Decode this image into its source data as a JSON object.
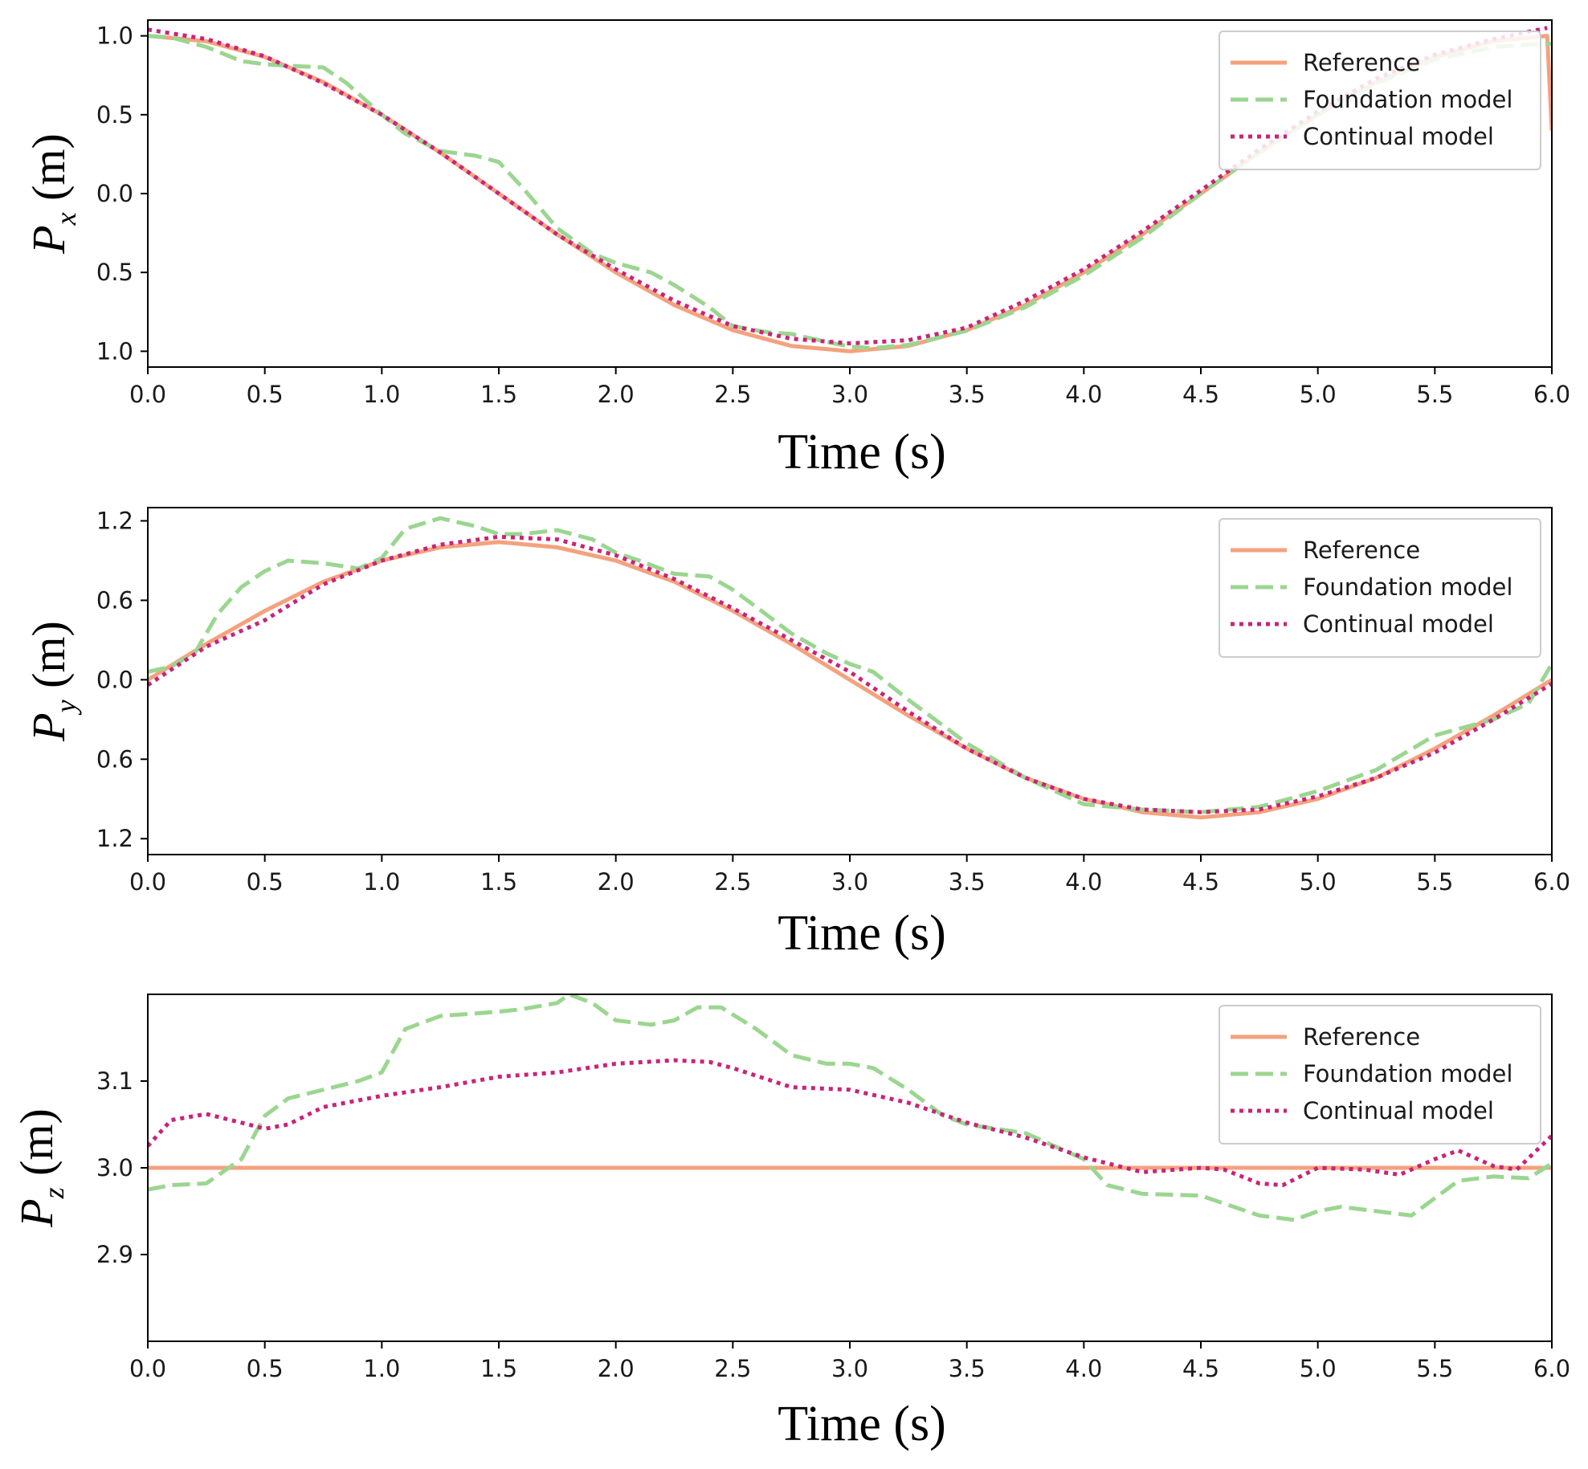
{
  "colors": {
    "reference": "#F4A27E",
    "foundation": "#9BD690",
    "continual": "#C8247A",
    "axis": "#000000",
    "legend_border": "#CCCCCC"
  },
  "chart_data": [
    {
      "type": "line",
      "xlabel": "Time (s)",
      "ylabel": {
        "symbol": "P",
        "sub": "x",
        "unit": " (m)"
      },
      "xlim": [
        0,
        6
      ],
      "ylim": [
        -1.1,
        1.1
      ],
      "xticks": [
        0,
        0.5,
        1,
        1.5,
        2,
        2.5,
        3,
        3.5,
        4,
        4.5,
        5,
        5.5,
        6
      ],
      "xtick_labels": [
        "0.0",
        "0.5",
        "1.0",
        "1.5",
        "2.0",
        "2.5",
        "3.0",
        "3.5",
        "4.0",
        "4.5",
        "5.0",
        "5.5",
        "6.0"
      ],
      "yticks": [
        1.0,
        0.5,
        0.0,
        -0.5,
        -1.0
      ],
      "ytick_labels": [
        "1.0",
        "0.5",
        "0.0",
        "0.5",
        "1.0"
      ],
      "legend": {
        "position": "top-right",
        "entries": [
          "Reference",
          "Foundation model",
          "Continual model"
        ]
      },
      "series": [
        {
          "name": "Reference",
          "style": "solid",
          "x": [
            0,
            0.25,
            0.5,
            0.75,
            1,
            1.25,
            1.5,
            1.75,
            2,
            2.25,
            2.5,
            2.75,
            3,
            3.25,
            3.5,
            3.75,
            4,
            4.25,
            4.5,
            4.75,
            5,
            5.25,
            5.5,
            5.75,
            5.98,
            6.0
          ],
          "y": [
            1.0,
            0.966,
            0.866,
            0.707,
            0.5,
            0.259,
            0.0,
            -0.259,
            -0.5,
            -0.707,
            -0.866,
            -0.966,
            -1.0,
            -0.966,
            -0.866,
            -0.707,
            -0.5,
            -0.259,
            0.0,
            0.259,
            0.5,
            0.707,
            0.866,
            0.966,
            1.0,
            0.4
          ]
        },
        {
          "name": "Foundation model",
          "style": "dashed",
          "x": [
            0,
            0.1,
            0.25,
            0.4,
            0.5,
            0.6,
            0.75,
            0.85,
            1,
            1.1,
            1.25,
            1.4,
            1.5,
            1.6,
            1.75,
            1.9,
            2,
            2.15,
            2.25,
            2.4,
            2.5,
            2.65,
            2.75,
            2.9,
            3,
            3.1,
            3.25,
            3.5,
            3.75,
            4,
            4.25,
            4.5,
            4.75,
            5,
            5.25,
            5.5,
            5.75,
            5.95,
            6.0
          ],
          "y": [
            1.0,
            0.99,
            0.93,
            0.84,
            0.82,
            0.81,
            0.8,
            0.7,
            0.5,
            0.38,
            0.27,
            0.24,
            0.2,
            0.04,
            -0.22,
            -0.38,
            -0.44,
            -0.5,
            -0.58,
            -0.72,
            -0.84,
            -0.88,
            -0.89,
            -0.94,
            -0.97,
            -0.98,
            -0.96,
            -0.87,
            -0.72,
            -0.52,
            -0.28,
            0.0,
            0.26,
            0.5,
            0.7,
            0.85,
            0.93,
            0.95,
            0.95
          ]
        },
        {
          "name": "Continual model",
          "style": "dotted",
          "x": [
            0,
            0.25,
            0.5,
            0.75,
            1,
            1.25,
            1.5,
            1.75,
            2,
            2.25,
            2.5,
            2.75,
            3,
            3.25,
            3.5,
            3.75,
            4,
            4.25,
            4.5,
            4.75,
            5,
            5.25,
            5.5,
            5.75,
            5.98
          ],
          "y": [
            1.04,
            0.98,
            0.87,
            0.7,
            0.5,
            0.26,
            0.0,
            -0.26,
            -0.48,
            -0.68,
            -0.84,
            -0.92,
            -0.95,
            -0.93,
            -0.85,
            -0.68,
            -0.48,
            -0.24,
            0.02,
            0.28,
            0.52,
            0.73,
            0.88,
            0.98,
            1.05
          ]
        }
      ]
    },
    {
      "type": "line",
      "xlabel": "Time (s)",
      "ylabel": {
        "symbol": "P",
        "sub": "y",
        "unit": " (m)"
      },
      "xlim": [
        0,
        6
      ],
      "ylim": [
        -1.32,
        1.3
      ],
      "xticks": [
        0,
        0.5,
        1,
        1.5,
        2,
        2.5,
        3,
        3.5,
        4,
        4.5,
        5,
        5.5,
        6
      ],
      "xtick_labels": [
        "0.0",
        "0.5",
        "1.0",
        "1.5",
        "2.0",
        "2.5",
        "3.0",
        "3.5",
        "4.0",
        "4.5",
        "5.0",
        "5.5",
        "6.0"
      ],
      "yticks": [
        1.2,
        0.6,
        0.0,
        -0.6,
        -1.2
      ],
      "ytick_labels": [
        "1.2",
        "0.6",
        "0.0",
        "0.6",
        "1.2"
      ],
      "legend": {
        "position": "top-right",
        "entries": [
          "Reference",
          "Foundation model",
          "Continual model"
        ]
      },
      "series": [
        {
          "name": "Reference",
          "style": "solid",
          "x": [
            0,
            0.25,
            0.5,
            0.75,
            1,
            1.25,
            1.5,
            1.75,
            2,
            2.25,
            2.5,
            2.75,
            3,
            3.25,
            3.5,
            3.75,
            4,
            4.25,
            4.5,
            4.75,
            5,
            5.25,
            5.5,
            5.75,
            6
          ],
          "y": [
            0,
            0.27,
            0.52,
            0.74,
            0.9,
            1.0,
            1.04,
            1.0,
            0.9,
            0.74,
            0.52,
            0.27,
            0,
            -0.27,
            -0.52,
            -0.74,
            -0.9,
            -1.0,
            -1.04,
            -1.0,
            -0.9,
            -0.74,
            -0.52,
            -0.27,
            0
          ]
        },
        {
          "name": "Foundation model",
          "style": "dashed",
          "x": [
            0,
            0.1,
            0.2,
            0.3,
            0.4,
            0.5,
            0.6,
            0.75,
            0.9,
            1,
            1.1,
            1.25,
            1.4,
            1.5,
            1.6,
            1.75,
            1.9,
            2,
            2.1,
            2.25,
            2.4,
            2.5,
            2.6,
            2.75,
            2.9,
            3,
            3.1,
            3.25,
            3.5,
            3.75,
            4,
            4.25,
            4.5,
            4.75,
            5,
            5.25,
            5.5,
            5.75,
            5.9,
            6.0
          ],
          "y": [
            0.06,
            0.1,
            0.2,
            0.5,
            0.7,
            0.82,
            0.9,
            0.88,
            0.84,
            0.92,
            1.14,
            1.22,
            1.16,
            1.1,
            1.1,
            1.13,
            1.06,
            0.96,
            0.9,
            0.8,
            0.78,
            0.68,
            0.55,
            0.35,
            0.2,
            0.12,
            0.06,
            -0.15,
            -0.48,
            -0.74,
            -0.94,
            -0.98,
            -1.0,
            -0.96,
            -0.84,
            -0.68,
            -0.42,
            -0.3,
            -0.18,
            0.12
          ]
        },
        {
          "name": "Continual model",
          "style": "dotted",
          "x": [
            0,
            0.25,
            0.5,
            0.75,
            1,
            1.25,
            1.5,
            1.75,
            2,
            2.25,
            2.5,
            2.75,
            3,
            3.25,
            3.5,
            3.75,
            4,
            4.25,
            4.5,
            4.75,
            5,
            5.25,
            5.5,
            5.75,
            6
          ],
          "y": [
            -0.04,
            0.25,
            0.45,
            0.72,
            0.9,
            1.02,
            1.08,
            1.06,
            0.94,
            0.76,
            0.54,
            0.3,
            0.06,
            -0.24,
            -0.52,
            -0.74,
            -0.9,
            -0.98,
            -1.0,
            -0.98,
            -0.88,
            -0.74,
            -0.55,
            -0.3,
            -0.03
          ]
        }
      ]
    },
    {
      "type": "line",
      "xlabel": "Time (s)",
      "ylabel": {
        "symbol": "P",
        "sub": "z",
        "unit": " (m)"
      },
      "xlim": [
        0,
        6
      ],
      "ylim": [
        2.8,
        3.2
      ],
      "xticks": [
        0,
        0.5,
        1,
        1.5,
        2,
        2.5,
        3,
        3.5,
        4,
        4.5,
        5,
        5.5,
        6
      ],
      "xtick_labels": [
        "0.0",
        "0.5",
        "1.0",
        "1.5",
        "2.0",
        "2.5",
        "3.0",
        "3.5",
        "4.0",
        "4.5",
        "5.0",
        "5.5",
        "6.0"
      ],
      "yticks": [
        3.1,
        3.0,
        2.9
      ],
      "ytick_labels": [
        "3.1",
        "3.0",
        "2.9"
      ],
      "legend": {
        "position": "top-right",
        "entries": [
          "Reference",
          "Foundation model",
          "Continual model"
        ]
      },
      "series": [
        {
          "name": "Reference",
          "style": "solid",
          "x": [
            0,
            6
          ],
          "y": [
            3.0,
            3.0
          ]
        },
        {
          "name": "Foundation model",
          "style": "dashed",
          "x": [
            0,
            0.1,
            0.25,
            0.4,
            0.5,
            0.6,
            0.75,
            0.9,
            1,
            1.1,
            1.25,
            1.5,
            1.6,
            1.75,
            1.8,
            1.9,
            2,
            2.15,
            2.25,
            2.35,
            2.45,
            2.6,
            2.75,
            2.9,
            3,
            3.1,
            3.25,
            3.4,
            3.5,
            3.75,
            4,
            4.1,
            4.25,
            4.5,
            4.75,
            4.9,
            5,
            5.1,
            5.25,
            5.4,
            5.5,
            5.6,
            5.75,
            5.9,
            6.0
          ],
          "y": [
            2.975,
            2.98,
            2.982,
            3.01,
            3.06,
            3.08,
            3.09,
            3.1,
            3.11,
            3.16,
            3.175,
            3.18,
            3.183,
            3.19,
            3.2,
            3.19,
            3.17,
            3.165,
            3.17,
            3.185,
            3.185,
            3.16,
            3.13,
            3.12,
            3.12,
            3.115,
            3.09,
            3.06,
            3.05,
            3.04,
            3.01,
            2.98,
            2.97,
            2.968,
            2.945,
            2.94,
            2.95,
            2.955,
            2.95,
            2.945,
            2.965,
            2.985,
            2.99,
            2.988,
            3.005
          ]
        },
        {
          "name": "Continual model",
          "style": "dotted",
          "x": [
            0,
            0.1,
            0.25,
            0.4,
            0.5,
            0.6,
            0.75,
            1,
            1.25,
            1.5,
            1.75,
            2,
            2.25,
            2.4,
            2.5,
            2.75,
            3,
            3.25,
            3.5,
            3.75,
            4,
            4.25,
            4.5,
            4.6,
            4.75,
            4.85,
            5,
            5.2,
            5.35,
            5.5,
            5.6,
            5.75,
            5.85,
            6.0
          ],
          "y": [
            3.025,
            3.055,
            3.062,
            3.052,
            3.045,
            3.05,
            3.07,
            3.083,
            3.093,
            3.105,
            3.11,
            3.12,
            3.124,
            3.122,
            3.115,
            3.093,
            3.09,
            3.075,
            3.052,
            3.035,
            3.012,
            2.995,
            3.0,
            2.998,
            2.982,
            2.98,
            3.0,
            2.998,
            2.992,
            3.01,
            3.02,
            3.002,
            2.998,
            3.037
          ]
        }
      ]
    }
  ]
}
